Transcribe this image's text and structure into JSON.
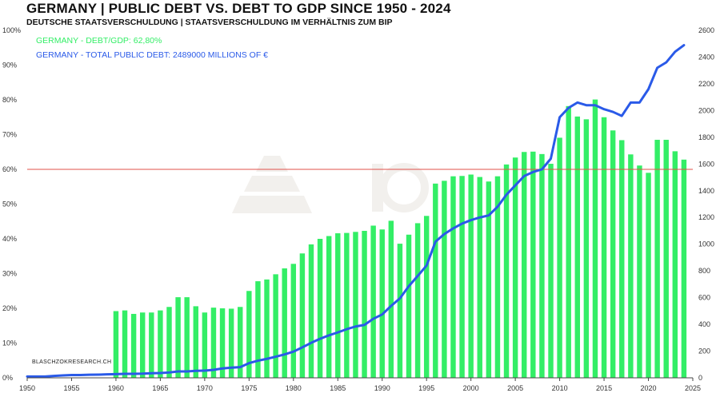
{
  "header": {
    "title": "GERMANY | PUBLIC DEBT VS. DEBT TO GDP SINCE 1950 - 2024",
    "subtitle": "DEUTSCHE STAATSVERSCHULDUNG | STAATSVERSCHULDUNG IM VERHÄLTNIS ZUM BIP"
  },
  "legend": {
    "gdp": "GERMANY - DEBT/GDP: 62,80%",
    "debt": "GERMANY - TOTAL  PUBLIC  DEBT: 2489000 MILLIONS  OF  €"
  },
  "source": "BLASCHZOKRESEARCH.CH",
  "colors": {
    "bars": "#33ee66",
    "line": "#2a5ae8",
    "refline": "#e0504a"
  },
  "chart_data": {
    "type": "bar",
    "x_ticks": [
      "1950",
      "1955",
      "1960",
      "1965",
      "1970",
      "1975",
      "1980",
      "1985",
      "1990",
      "1995",
      "2000",
      "2005",
      "2010",
      "2015",
      "2020",
      "2025"
    ],
    "y_left_ticks": [
      "0%",
      "10%",
      "20%",
      "30%",
      "40%",
      "50%",
      "60%",
      "70%",
      "80%",
      "90%",
      "100%"
    ],
    "y_right_ticks": [
      "0",
      "200",
      "400",
      "600",
      "800",
      "1000",
      "1200",
      "1400",
      "1600",
      "1800",
      "2000",
      "2200",
      "2400",
      "2600"
    ],
    "y_left_range": [
      0,
      100
    ],
    "y_right_range": [
      0,
      2600
    ],
    "x_range": [
      1950,
      2025
    ],
    "reference_line": 60,
    "series": [
      {
        "name": "GERMANY - DEBT/GDP",
        "kind": "bar",
        "axis": "left",
        "x": [
          1960,
          1961,
          1962,
          1963,
          1964,
          1965,
          1966,
          1967,
          1968,
          1969,
          1970,
          1971,
          1972,
          1973,
          1974,
          1975,
          1976,
          1977,
          1978,
          1979,
          1980,
          1981,
          1982,
          1983,
          1984,
          1985,
          1986,
          1987,
          1988,
          1989,
          1990,
          1991,
          1992,
          1993,
          1994,
          1995,
          1996,
          1997,
          1998,
          1999,
          2000,
          2001,
          2002,
          2003,
          2004,
          2005,
          2006,
          2007,
          2008,
          2009,
          2010,
          2011,
          2012,
          2013,
          2014,
          2015,
          2016,
          2017,
          2018,
          2019,
          2020,
          2021,
          2022,
          2023,
          2024
        ],
        "values": [
          19.2,
          19.4,
          18.4,
          18.8,
          18.8,
          19.4,
          20.4,
          23.2,
          23.2,
          20.6,
          18.8,
          20.2,
          20.0,
          19.9,
          20.4,
          25.0,
          27.8,
          28.3,
          29.8,
          31.5,
          32.8,
          35.8,
          38.4,
          40.0,
          40.8,
          41.6,
          41.7,
          42.0,
          42.3,
          43.8,
          42.7,
          45.2,
          38.6,
          41.2,
          44.5,
          46.6,
          55.9,
          56.7,
          58.0,
          58.1,
          58.5,
          57.8,
          56.5,
          58.0,
          61.4,
          63.4,
          65.0,
          65.1,
          64.4,
          61.6,
          69.1,
          78.2,
          75.2,
          74.4,
          80.1,
          75.0,
          71.2,
          68.4,
          64.3,
          61.1,
          59.0,
          68.5,
          68.5,
          65.2,
          62.8
        ]
      },
      {
        "name": "GERMANY - TOTAL PUBLIC DEBT",
        "kind": "line",
        "axis": "right",
        "x": [
          1950,
          1951,
          1952,
          1953,
          1954,
          1955,
          1956,
          1957,
          1958,
          1959,
          1960,
          1961,
          1962,
          1963,
          1964,
          1965,
          1966,
          1967,
          1968,
          1969,
          1970,
          1971,
          1972,
          1973,
          1974,
          1975,
          1976,
          1977,
          1978,
          1979,
          1980,
          1981,
          1982,
          1983,
          1984,
          1985,
          1986,
          1987,
          1988,
          1989,
          1990,
          1991,
          1992,
          1993,
          1994,
          1995,
          1996,
          1997,
          1998,
          1999,
          2000,
          2001,
          2002,
          2003,
          2004,
          2005,
          2006,
          2007,
          2008,
          2009,
          2010,
          2011,
          2012,
          2013,
          2014,
          2015,
          2016,
          2017,
          2018,
          2019,
          2020,
          2021,
          2022,
          2023,
          2024
        ],
        "values": [
          10,
          10,
          10,
          14,
          18,
          21,
          21,
          23,
          24,
          26,
          28,
          30,
          30,
          31,
          34,
          36,
          40,
          48,
          48,
          52,
          54,
          60,
          70,
          76,
          80,
          110,
          128,
          142,
          158,
          175,
          196,
          228,
          262,
          292,
          318,
          340,
          364,
          384,
          396,
          442,
          474,
          538,
          595,
          686,
          762,
          840,
          1018,
          1076,
          1118,
          1154,
          1180,
          1200,
          1215,
          1280,
          1370,
          1440,
          1510,
          1540,
          1560,
          1640,
          1950,
          2020,
          2060,
          2040,
          2040,
          2010,
          1990,
          1960,
          2060,
          2060,
          2160,
          2320,
          2360,
          2440,
          2489
        ]
      }
    ]
  }
}
